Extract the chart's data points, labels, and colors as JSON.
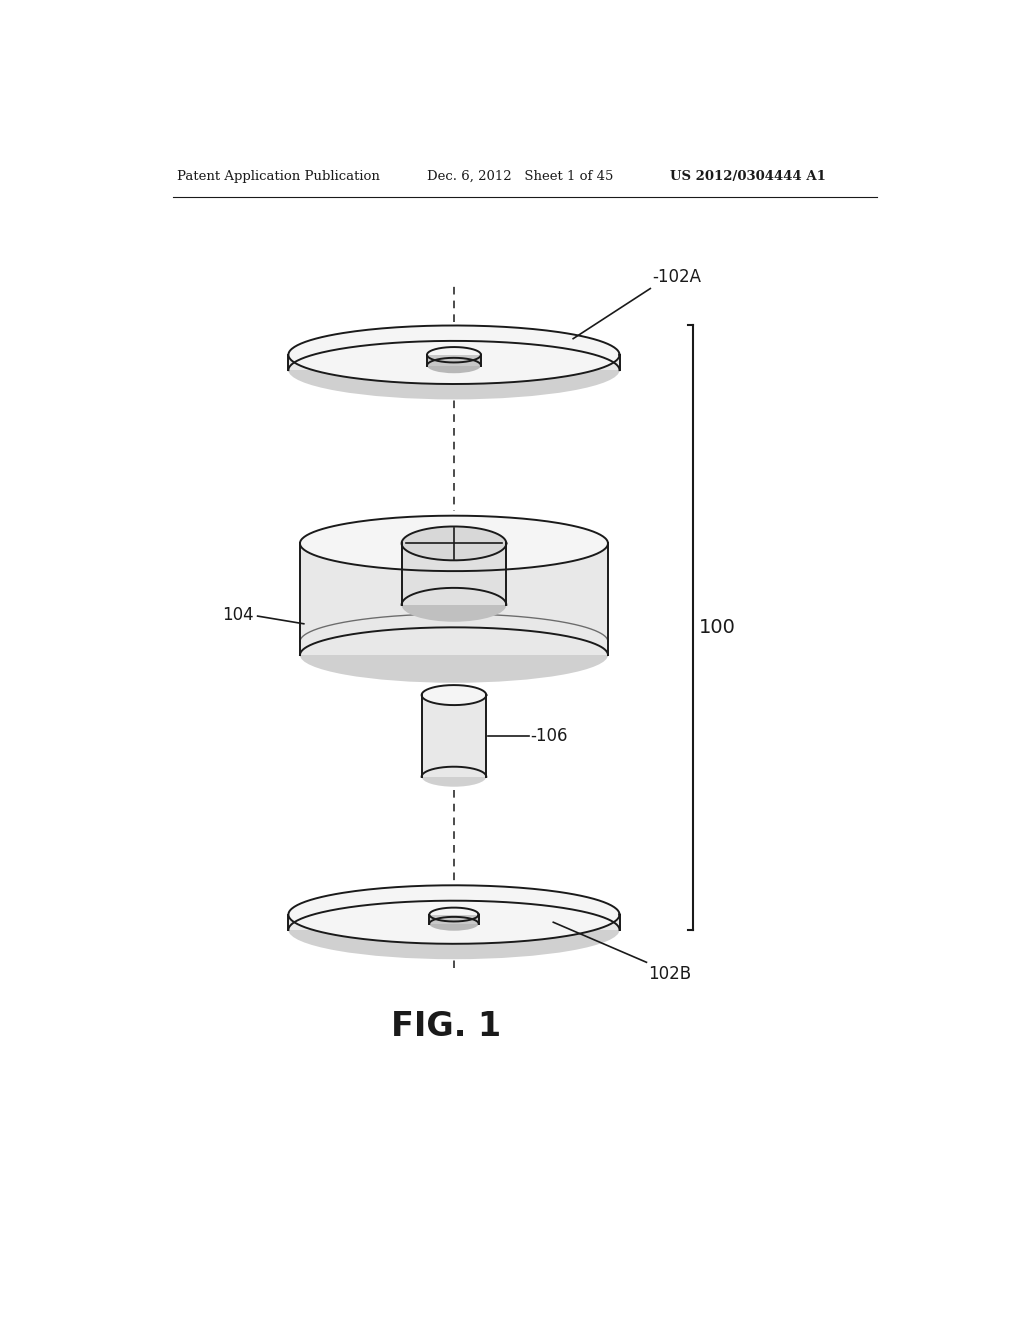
{
  "bg_color": "#ffffff",
  "header_left": "Patent Application Publication",
  "header_mid": "Dec. 6, 2012   Sheet 1 of 45",
  "header_right": "US 2012/0304444 A1",
  "fig_label": "FIG. 1",
  "label_100": "100",
  "label_102A": "-102A",
  "label_102B": "102B",
  "label_104": "104",
  "label_106": "-106",
  "line_color": "#1a1a1a",
  "fill_top": "#f5f5f5",
  "fill_side": "#e8e8e8",
  "fill_bot": "#d0d0d0",
  "fill_inner": "#e0e0e0"
}
